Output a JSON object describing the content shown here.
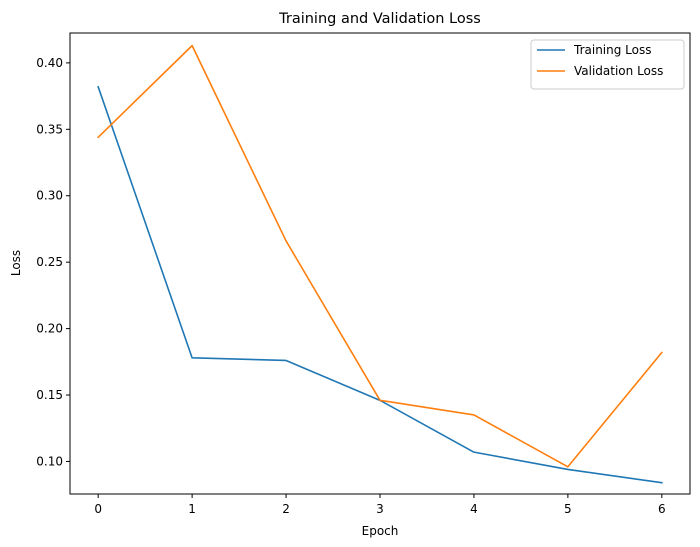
{
  "chart_data": {
    "type": "line",
    "title": "Training and Validation Loss",
    "xlabel": "Epoch",
    "ylabel": "Loss",
    "x": [
      0,
      1,
      2,
      3,
      4,
      5,
      6
    ],
    "xlim": [
      -0.3,
      6.3
    ],
    "ylim": [
      0.0755,
      0.4225
    ],
    "xticks": [
      0,
      1,
      2,
      3,
      4,
      5,
      6
    ],
    "yticks": [
      0.1,
      0.15,
      0.2,
      0.25,
      0.3,
      0.35,
      0.4
    ],
    "ytick_labels": [
      "0.10",
      "0.15",
      "0.20",
      "0.25",
      "0.30",
      "0.35",
      "0.40"
    ],
    "legend_position": "top-right",
    "grid": false,
    "series": [
      {
        "name": "Training Loss",
        "color": "#1f77b4",
        "values": [
          0.382,
          0.178,
          0.176,
          0.146,
          0.107,
          0.094,
          0.084
        ]
      },
      {
        "name": "Validation Loss",
        "color": "#ff7f0e",
        "values": [
          0.344,
          0.413,
          0.266,
          0.146,
          0.135,
          0.096,
          0.182
        ]
      }
    ]
  }
}
